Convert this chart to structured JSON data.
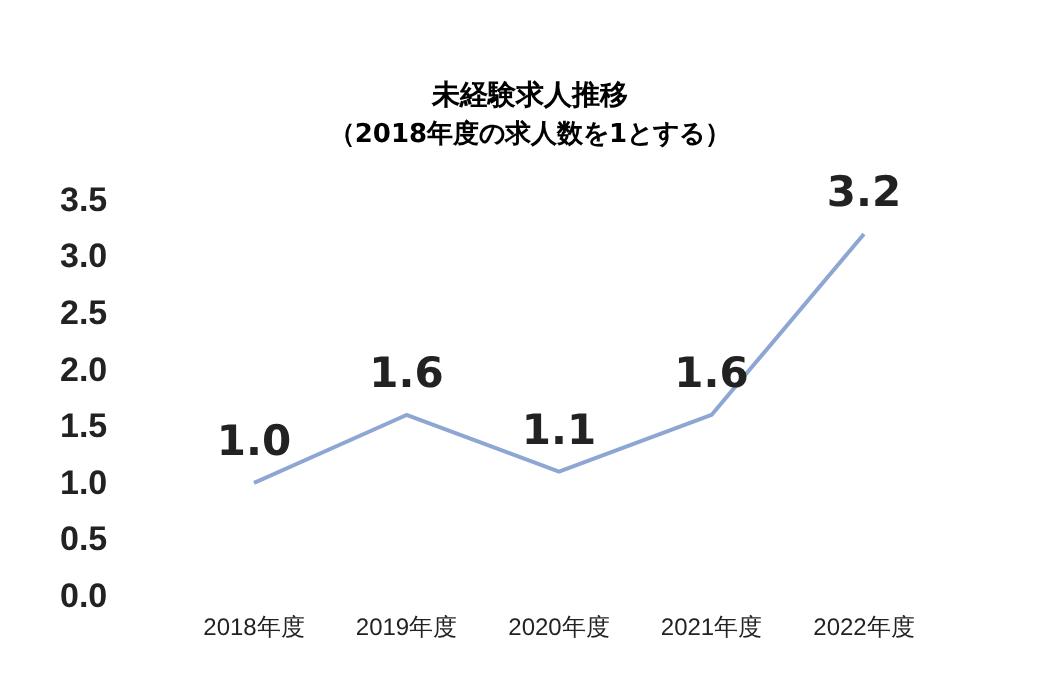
{
  "chart_data": {
    "type": "line",
    "title": "未経験求人推移",
    "subtitle": "（2018年度の求人数を1とする）",
    "categories": [
      "2018年度",
      "2019年度",
      "2020年度",
      "2021年度",
      "2022年度"
    ],
    "series": [
      {
        "color": "#8ea6d4",
        "values": [
          1.0,
          1.6,
          1.1,
          1.6,
          3.2
        ],
        "value_labels": [
          "1.0",
          "1.6",
          "1.1",
          "1.6",
          "3.2"
        ]
      }
    ],
    "ylim": [
      0,
      3.5
    ],
    "yticks": [
      {
        "value": 0,
        "label": "0.0"
      },
      {
        "value": 0.5,
        "label": "0.5"
      },
      {
        "value": 1,
        "label": "1.0"
      },
      {
        "value": 1.5,
        "label": "1.5"
      },
      {
        "value": 2,
        "label": "2.0"
      },
      {
        "value": 2.5,
        "label": "2.5"
      },
      {
        "value": 3,
        "label": "3.0"
      },
      {
        "value": 3.5,
        "label": "3.5"
      }
    ],
    "grid": false,
    "marker": "none",
    "line_style": "solid"
  }
}
